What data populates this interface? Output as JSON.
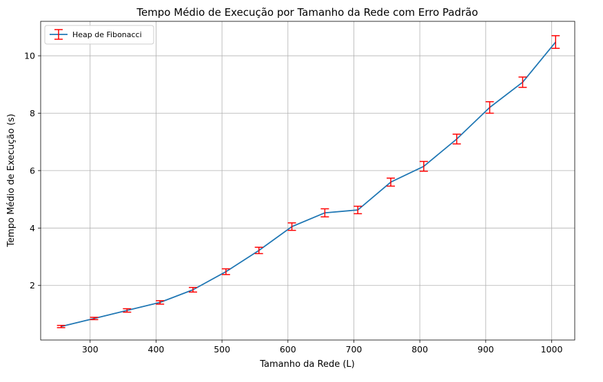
{
  "chart_data": {
    "type": "line",
    "title": "Tempo Médio de Execução por Tamanho da Rede com Erro Padrão",
    "xlabel": "Tamanho da Rede (L)",
    "ylabel": "Tempo Médio de Execução (s)",
    "xlim": [
      225,
      1035
    ],
    "ylim": [
      0.1,
      11.2
    ],
    "xticks": [
      300,
      400,
      500,
      600,
      700,
      800,
      900,
      1000
    ],
    "yticks": [
      2,
      4,
      6,
      8,
      10
    ],
    "grid": true,
    "legend_position": "top-left",
    "series": [
      {
        "name": "Heap de Fibonacci",
        "line_color": "#1f77b4",
        "error_color": "#ff0000",
        "x": [
          256,
          306,
          356,
          406,
          456,
          506,
          556,
          606,
          656,
          706,
          756,
          806,
          856,
          906,
          956,
          1006
        ],
        "y": [
          0.57,
          0.85,
          1.13,
          1.41,
          1.85,
          2.48,
          3.22,
          4.05,
          4.53,
          4.63,
          5.6,
          6.15,
          7.1,
          8.2,
          9.08,
          10.48
        ],
        "yerr": [
          0.04,
          0.04,
          0.06,
          0.06,
          0.08,
          0.1,
          0.11,
          0.13,
          0.14,
          0.13,
          0.14,
          0.17,
          0.17,
          0.2,
          0.18,
          0.22
        ]
      }
    ]
  }
}
